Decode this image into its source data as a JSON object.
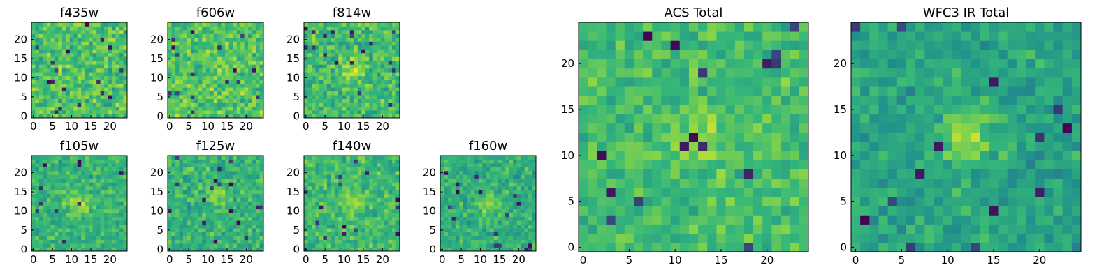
{
  "colormap": [
    "#440154",
    "#31688e",
    "#21918c",
    "#35b779",
    "#90d743",
    "#fde725"
  ],
  "chart_data": [
    {
      "type": "heatmap",
      "title": "f435w",
      "size": 25,
      "x_ticks": [
        0,
        5,
        10,
        15,
        20
      ],
      "y_ticks": [
        0,
        5,
        10,
        15,
        20
      ],
      "noise": 0.16,
      "peak": 0.05,
      "peak_at": [
        12,
        12
      ],
      "base": 0.66
    },
    {
      "type": "heatmap",
      "title": "f606w",
      "size": 25,
      "x_ticks": [
        0,
        5,
        10,
        15,
        20
      ],
      "y_ticks": [
        0,
        5,
        10,
        15,
        20
      ],
      "noise": 0.16,
      "peak": 0.05,
      "peak_at": [
        12,
        12
      ],
      "base": 0.66
    },
    {
      "type": "heatmap",
      "title": "f814w",
      "size": 25,
      "x_ticks": [
        0,
        5,
        10,
        15,
        20
      ],
      "y_ticks": [
        0,
        5,
        10,
        15,
        20
      ],
      "noise": 0.16,
      "peak": 0.18,
      "peak_at": [
        12,
        12
      ],
      "base": 0.62
    },
    {
      "type": "heatmap",
      "title": "f105w",
      "size": 25,
      "x_ticks": [
        0,
        5,
        10,
        15,
        20
      ],
      "y_ticks": [
        0,
        5,
        10,
        15,
        20
      ],
      "noise": 0.12,
      "peak": 0.22,
      "peak_at": [
        12,
        12
      ],
      "base": 0.58
    },
    {
      "type": "heatmap",
      "title": "f125w",
      "size": 25,
      "x_ticks": [
        0,
        5,
        10,
        15,
        20
      ],
      "y_ticks": [
        0,
        5,
        10,
        15,
        20
      ],
      "noise": 0.13,
      "peak": 0.18,
      "peak_at": [
        12,
        14
      ],
      "base": 0.58
    },
    {
      "type": "heatmap",
      "title": "f140w",
      "size": 25,
      "x_ticks": [
        0,
        5,
        10,
        15,
        20
      ],
      "y_ticks": [
        0,
        5,
        10,
        15,
        20
      ],
      "noise": 0.13,
      "peak": 0.15,
      "peak_at": [
        12,
        12
      ],
      "base": 0.62
    },
    {
      "type": "heatmap",
      "title": "f160w",
      "size": 25,
      "x_ticks": [
        0,
        5,
        10,
        15,
        20
      ],
      "y_ticks": [
        0,
        5,
        10,
        15,
        20
      ],
      "noise": 0.12,
      "peak": 0.2,
      "peak_at": [
        12,
        12
      ],
      "base": 0.56
    },
    {
      "type": "heatmap",
      "title": "ACS Total",
      "size": 25,
      "x_ticks": [
        0,
        5,
        10,
        15,
        20
      ],
      "y_ticks": [
        0,
        5,
        10,
        15,
        20
      ],
      "noise": 0.12,
      "peak": 0.2,
      "peak_at": [
        12,
        12
      ],
      "base": 0.62
    },
    {
      "type": "heatmap",
      "title": "WFC3 IR Total",
      "size": 25,
      "x_ticks": [
        0,
        5,
        10,
        15,
        20
      ],
      "y_ticks": [
        0,
        5,
        10,
        15,
        20
      ],
      "noise": 0.12,
      "peak": 0.3,
      "peak_at": [
        12,
        12
      ],
      "base": 0.5
    }
  ]
}
